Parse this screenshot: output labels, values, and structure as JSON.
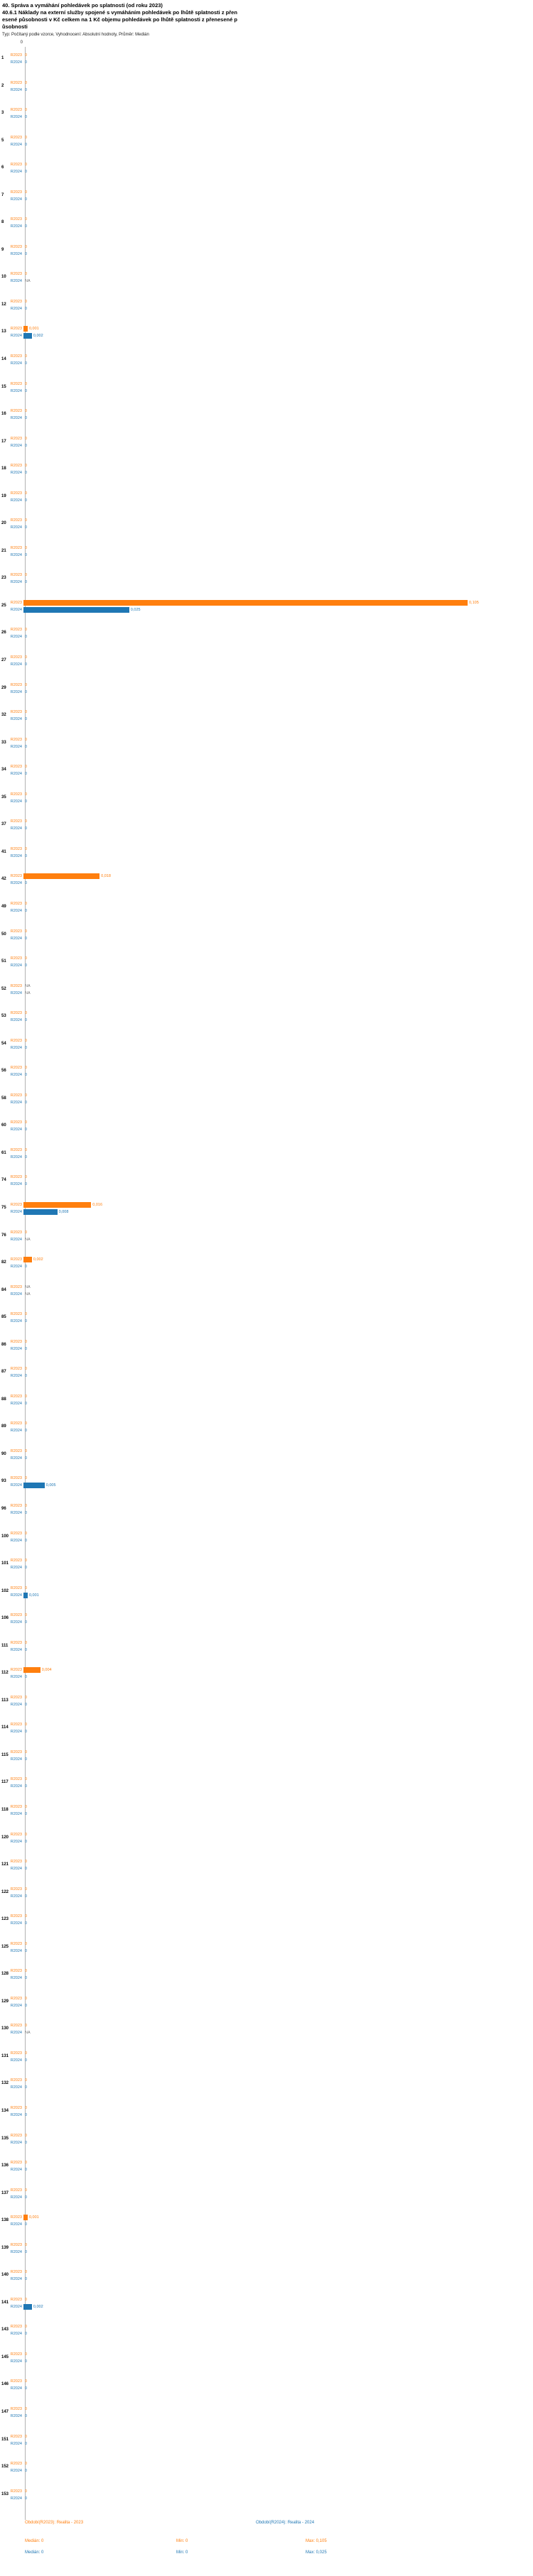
{
  "header": {
    "title_line1": "40. Správa a vymáhání pohledávek po splatnosti (od roku 2023)",
    "title_line2": "40.6.1 Náklady na externí služby spojené s vymáháním pohledávek po lhůtě splatnosti z přenesené působnosti v Kč celkem na 1 Kč objemu pohledávek po lhůtě splatnosti z přenesené působnosti",
    "subtitle": "Typ: Počítaný podle vzorce, Vyhodnocení: Absolutní hodnoty, Průměr: Medián"
  },
  "chart_data": {
    "type": "bar",
    "orientation": "horizontal",
    "title": "40.6.1 Náklady na externí služby spojené s vymáháním pohledávek po lhůtě splatnosti z přenesené působnosti v Kč celkem na 1 Kč objemu pohledávek po lhůtě splatnosti z přenesené působnosti",
    "value_format": "czech decimal comma, NA = no data",
    "x_axis": {
      "zero_label": "0",
      "min": 0,
      "plot_max": 0.105,
      "grid": false
    },
    "series": [
      {
        "name": "R2023",
        "legend_label": "Období(R2023): Realita - 2023",
        "color": "#ff7f0e",
        "stats": {
          "median": "Medián: 0",
          "min": "Min: 0",
          "max": "Max: 0,105"
        }
      },
      {
        "name": "R2024",
        "legend_label": "Období(R2024): Realita - 2024",
        "color": "#1f77b4",
        "stats": {
          "median": "Medián: 0",
          "min": "Min: 0",
          "max": "Max: 0,025"
        }
      }
    ],
    "groups": [
      {
        "id": "1",
        "r2023": "0",
        "r2024": "0"
      },
      {
        "id": "2",
        "r2023": "0",
        "r2024": "0"
      },
      {
        "id": "3",
        "r2023": "0",
        "r2024": "0"
      },
      {
        "id": "5",
        "r2023": "0",
        "r2024": "0"
      },
      {
        "id": "6",
        "r2023": "0",
        "r2024": "0"
      },
      {
        "id": "7",
        "r2023": "0",
        "r2024": "0"
      },
      {
        "id": "8",
        "r2023": "0",
        "r2024": "0"
      },
      {
        "id": "9",
        "r2023": "0",
        "r2024": "0"
      },
      {
        "id": "10",
        "r2023": "0",
        "r2024": "NA"
      },
      {
        "id": "12",
        "r2023": "0",
        "r2024": "0"
      },
      {
        "id": "13",
        "r2023": "0,001",
        "r2024": "0,002"
      },
      {
        "id": "14",
        "r2023": "0",
        "r2024": "0"
      },
      {
        "id": "15",
        "r2023": "0",
        "r2024": "0"
      },
      {
        "id": "16",
        "r2023": "0",
        "r2024": "0"
      },
      {
        "id": "17",
        "r2023": "0",
        "r2024": "0"
      },
      {
        "id": "18",
        "r2023": "0",
        "r2024": "0"
      },
      {
        "id": "19",
        "r2023": "0",
        "r2024": "0"
      },
      {
        "id": "20",
        "r2023": "0",
        "r2024": "0"
      },
      {
        "id": "21",
        "r2023": "0",
        "r2024": "0"
      },
      {
        "id": "23",
        "r2023": "0",
        "r2024": "0"
      },
      {
        "id": "25",
        "r2023": "0,105",
        "r2024": "0,025"
      },
      {
        "id": "26",
        "r2023": "0",
        "r2024": "0"
      },
      {
        "id": "27",
        "r2023": "0",
        "r2024": "0"
      },
      {
        "id": "29",
        "r2023": "0",
        "r2024": "0"
      },
      {
        "id": "32",
        "r2023": "0",
        "r2024": "0"
      },
      {
        "id": "33",
        "r2023": "0",
        "r2024": "0"
      },
      {
        "id": "34",
        "r2023": "0",
        "r2024": "0"
      },
      {
        "id": "35",
        "r2023": "0",
        "r2024": "0"
      },
      {
        "id": "37",
        "r2023": "0",
        "r2024": "0"
      },
      {
        "id": "41",
        "r2023": "0",
        "r2024": "0"
      },
      {
        "id": "42",
        "r2023": "0,018",
        "r2024": "0"
      },
      {
        "id": "49",
        "r2023": "0",
        "r2024": "0"
      },
      {
        "id": "50",
        "r2023": "0",
        "r2024": "0"
      },
      {
        "id": "51",
        "r2023": "0",
        "r2024": "0"
      },
      {
        "id": "52",
        "r2023": "NA",
        "r2024": "NA"
      },
      {
        "id": "53",
        "r2023": "0",
        "r2024": "0"
      },
      {
        "id": "54",
        "r2023": "0",
        "r2024": "0"
      },
      {
        "id": "56",
        "r2023": "0",
        "r2024": "0"
      },
      {
        "id": "58",
        "r2023": "0",
        "r2024": "0"
      },
      {
        "id": "60",
        "r2023": "0",
        "r2024": "0"
      },
      {
        "id": "61",
        "r2023": "0",
        "r2024": "0"
      },
      {
        "id": "74",
        "r2023": "0",
        "r2024": "0"
      },
      {
        "id": "75",
        "r2023": "0,016",
        "r2024": "0,008"
      },
      {
        "id": "76",
        "r2023": "0",
        "r2024": "NA"
      },
      {
        "id": "82",
        "r2023": "0,002",
        "r2024": "0"
      },
      {
        "id": "84",
        "r2023": "NA",
        "r2024": "NA"
      },
      {
        "id": "85",
        "r2023": "0",
        "r2024": "0"
      },
      {
        "id": "86",
        "r2023": "0",
        "r2024": "0"
      },
      {
        "id": "87",
        "r2023": "0",
        "r2024": "0"
      },
      {
        "id": "88",
        "r2023": "0",
        "r2024": "0"
      },
      {
        "id": "89",
        "r2023": "0",
        "r2024": "0"
      },
      {
        "id": "90",
        "r2023": "0",
        "r2024": "0"
      },
      {
        "id": "93",
        "r2023": "0",
        "r2024": "0,005"
      },
      {
        "id": "96",
        "r2023": "0",
        "r2024": "0"
      },
      {
        "id": "100",
        "r2023": "0",
        "r2024": "0"
      },
      {
        "id": "101",
        "r2023": "0",
        "r2024": "0"
      },
      {
        "id": "102",
        "r2023": "0",
        "r2024": "0,001"
      },
      {
        "id": "106",
        "r2023": "0",
        "r2024": "0"
      },
      {
        "id": "111",
        "r2023": "0",
        "r2024": "0"
      },
      {
        "id": "112",
        "r2023": "0,004",
        "r2024": "0"
      },
      {
        "id": "113",
        "r2023": "0",
        "r2024": "0"
      },
      {
        "id": "114",
        "r2023": "0",
        "r2024": "0"
      },
      {
        "id": "115",
        "r2023": "0",
        "r2024": "0"
      },
      {
        "id": "117",
        "r2023": "0",
        "r2024": "0"
      },
      {
        "id": "118",
        "r2023": "0",
        "r2024": "0"
      },
      {
        "id": "120",
        "r2023": "0",
        "r2024": "0"
      },
      {
        "id": "121",
        "r2023": "0",
        "r2024": "0"
      },
      {
        "id": "122",
        "r2023": "0",
        "r2024": "0"
      },
      {
        "id": "123",
        "r2023": "0",
        "r2024": "0"
      },
      {
        "id": "125",
        "r2023": "0",
        "r2024": "0"
      },
      {
        "id": "128",
        "r2023": "0",
        "r2024": "0"
      },
      {
        "id": "129",
        "r2023": "0",
        "r2024": "0"
      },
      {
        "id": "130",
        "r2023": "0",
        "r2024": "NA"
      },
      {
        "id": "131",
        "r2023": "0",
        "r2024": "0"
      },
      {
        "id": "132",
        "r2023": "0",
        "r2024": "0"
      },
      {
        "id": "134",
        "r2023": "0",
        "r2024": "0"
      },
      {
        "id": "135",
        "r2023": "0",
        "r2024": "0"
      },
      {
        "id": "136",
        "r2023": "0",
        "r2024": "0"
      },
      {
        "id": "137",
        "r2023": "0",
        "r2024": "0"
      },
      {
        "id": "138",
        "r2023": "0,001",
        "r2024": "0"
      },
      {
        "id": "139",
        "r2023": "0",
        "r2024": "0"
      },
      {
        "id": "140",
        "r2023": "0",
        "r2024": "0"
      },
      {
        "id": "141",
        "r2023": "0",
        "r2024": "0,002"
      },
      {
        "id": "143",
        "r2023": "0",
        "r2024": "0"
      },
      {
        "id": "145",
        "r2023": "0",
        "r2024": "0"
      },
      {
        "id": "146",
        "r2023": "0",
        "r2024": "0"
      },
      {
        "id": "147",
        "r2023": "0",
        "r2024": "0"
      },
      {
        "id": "151",
        "r2023": "0",
        "r2024": "0"
      },
      {
        "id": "152",
        "r2023": "0",
        "r2024": "0"
      },
      {
        "id": "153",
        "r2023": "0",
        "r2024": "0"
      }
    ]
  }
}
